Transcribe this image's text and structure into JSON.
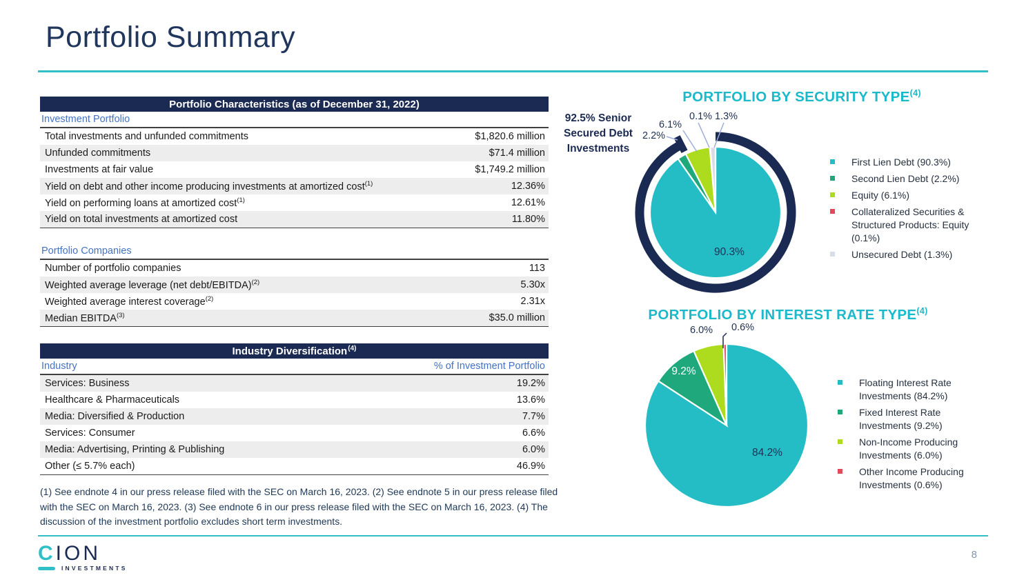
{
  "slide": {
    "title": "Portfolio Summary",
    "page_number": "8",
    "logo": {
      "c": "C",
      "ion": "ION",
      "subtext": "INVESTMENTS"
    },
    "accent_teal": "#2FBFC9",
    "navy": "#1B2A52"
  },
  "tables": {
    "characteristics": {
      "title": "Portfolio Characteristics (as of December 31, 2022)",
      "section1": "Investment Portfolio",
      "rows1": [
        {
          "label": "Total investments and unfunded commitments",
          "sup": "",
          "value": "$1,820.6 million"
        },
        {
          "label": "Unfunded commitments",
          "sup": "",
          "value": "$71.4 million"
        },
        {
          "label": "Investments at fair value",
          "sup": "",
          "value": "$1,749.2 million"
        },
        {
          "label": "Yield on debt and other income producing investments at amortized cost",
          "sup": "(1)",
          "value": "12.36%"
        },
        {
          "label": "Yield on performing loans at amortized cost",
          "sup": "(1)",
          "value": "12.61%"
        },
        {
          "label": "Yield on total investments at amortized cost",
          "sup": "",
          "value": "11.80%"
        }
      ],
      "section2": "Portfolio Companies",
      "rows2": [
        {
          "label": "Number of portfolio companies",
          "sup": "",
          "value": "113"
        },
        {
          "label": "Weighted average leverage (net debt/EBITDA)",
          "sup": "(2)",
          "value": "5.30x"
        },
        {
          "label": "Weighted average interest coverage",
          "sup": "(2)",
          "value": "2.31x"
        },
        {
          "label": "Median EBITDA",
          "sup": "(3)",
          "value": "$35.0 million"
        }
      ]
    },
    "industry": {
      "title": "Industry Diversification",
      "title_sup": "(4)",
      "col1": "Industry",
      "col2": "% of Investment Portfolio",
      "rows": [
        {
          "label": "Services: Business",
          "value": "19.2%"
        },
        {
          "label": "Healthcare & Pharmaceuticals",
          "value": "13.6%"
        },
        {
          "label": "Media: Diversified & Production",
          "value": "7.7%"
        },
        {
          "label": "Services: Consumer",
          "value": "6.6%"
        },
        {
          "label": "Media: Advertising, Printing & Publishing",
          "value": "6.0%"
        },
        {
          "label": "Other (≤ 5.7% each)",
          "value": "46.9%"
        }
      ]
    }
  },
  "footnotes": "(1) See endnote 4 in our press release filed with the SEC on March 16, 2023. (2) See endnote 5 in our press release filed with the SEC on March 16, 2023. (3) See endnote 6 in our press release filed with the SEC on March 16, 2023. (4) The discussion of the investment portfolio excludes short term investments.",
  "chart_data": [
    {
      "type": "pie",
      "title": "PORTFOLIO BY SECURITY TYPE",
      "title_sup": "(4)",
      "categories": [
        "First Lien Debt",
        "Second Lien Debt",
        "Equity",
        "Collateralized Securities & Structured Products: Equity",
        "Unsecured Debt"
      ],
      "values": [
        90.3,
        2.2,
        6.1,
        0.1,
        1.3
      ],
      "colors": [
        "#25BDC5",
        "#1EA87C",
        "#ADDC1F",
        "#E2495D",
        "#D9DDE8"
      ],
      "legend_labels": [
        "First Lien Debt (90.3%)",
        "Second Lien Debt (2.2%)",
        "Equity (6.1%)",
        "Collateralized Securities & Structured Products: Equity (0.1%)",
        "Unsecured Debt (1.3%)"
      ],
      "legend_position": "right",
      "start_angle_deg": 0,
      "direction": "clockwise",
      "annotation_lines": [
        "92.5% Senior",
        "Secured Debt",
        "Investments"
      ],
      "ring": {
        "coverage_pct": 92.5,
        "color": "#1B2A52"
      },
      "callouts": [
        {
          "text": "2.2%"
        },
        {
          "text": "6.1%"
        },
        {
          "text": "0.1%"
        },
        {
          "text": "1.3%"
        }
      ],
      "inside_label": "90.3%"
    },
    {
      "type": "pie",
      "title": "PORTFOLIO BY INTEREST RATE TYPE",
      "title_sup": "(4)",
      "categories": [
        "Floating Interest Rate Investments",
        "Fixed Interest Rate Investments",
        "Non-Income Producing Investments",
        "Other Income Producing Investments"
      ],
      "values": [
        84.2,
        9.2,
        6.0,
        0.6
      ],
      "colors": [
        "#25BDC5",
        "#1EA87C",
        "#ADDC1F",
        "#E2495D"
      ],
      "legend_labels": [
        "Floating Interest Rate Investments (84.2%)",
        "Fixed Interest Rate Investments (9.2%)",
        "Non-Income Producing Investments (6.0%)",
        "Other Income Producing Investments (0.6%)"
      ],
      "legend_position": "right",
      "start_angle_deg": 0,
      "direction": "clockwise",
      "callouts": [
        {
          "text": "6.0%"
        },
        {
          "text": "0.6%"
        }
      ],
      "inside_label": "84.2%",
      "inside_label2": "9.2%"
    }
  ]
}
